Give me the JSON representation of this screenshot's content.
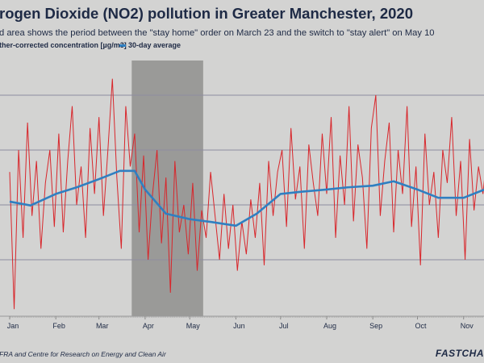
{
  "header": {
    "title": "rogen Dioxide (NO2) pollution in Greater Manchester, 2020",
    "subtitle": "d area shows the period between the \"stay home\" order on March 23 and the switch to \"stay alert\" on May 10",
    "legend": [
      {
        "label": "ther-corrected concentration [µg/m3]",
        "color": "#d8262b"
      },
      {
        "label": "30-day average",
        "color": "#2f7fc1"
      }
    ]
  },
  "footer": {
    "source": "FRA and Centre for Research on Energy and Clean Air",
    "brand": "FASTCHA"
  },
  "chart_data": {
    "type": "line",
    "xlabel": "",
    "ylabel": "",
    "x_tick_labels": [
      "Jan",
      "Feb",
      "Mar",
      "Apr",
      "May",
      "Jun",
      "Jul",
      "Aug",
      "Sep",
      "Oct",
      "Nov"
    ],
    "xlim": [
      "2020-01-01",
      "2020-11-21"
    ],
    "ylim": [
      0,
      45
    ],
    "grid": "horizontal",
    "gridlines": [
      10,
      20,
      30,
      40
    ],
    "shaded_period": {
      "start": "2020-03-23",
      "end": "2020-05-10",
      "color": "#9a9a98"
    },
    "series": [
      {
        "name": "ther-corrected concentration [µg/m3]",
        "color": "#d8262b",
        "start": "2020-01-01",
        "step_days": 3,
        "values": [
          26,
          1,
          30,
          14,
          35,
          18,
          28,
          12,
          24,
          30,
          16,
          33,
          15,
          28,
          38,
          20,
          27,
          14,
          34,
          22,
          36,
          18,
          30,
          43,
          25,
          12,
          38,
          27,
          33,
          15,
          29,
          10,
          22,
          30,
          13,
          25,
          4,
          28,
          15,
          20,
          11,
          24,
          8,
          19,
          14,
          26,
          18,
          10,
          22,
          12,
          20,
          8,
          17,
          11,
          21,
          14,
          24,
          9,
          28,
          18,
          26,
          30,
          16,
          34,
          21,
          27,
          12,
          31,
          24,
          18,
          33,
          22,
          36,
          14,
          29,
          20,
          38,
          17,
          31,
          25,
          12,
          34,
          40,
          18,
          28,
          35,
          15,
          30,
          22,
          38,
          16,
          27,
          9,
          33,
          20,
          26,
          14,
          30,
          24,
          36,
          18,
          28,
          10,
          32,
          19,
          27,
          22,
          30
        ]
      },
      {
        "name": "30-day average",
        "color": "#2f7fc1",
        "x": [
          "2020-01-01",
          "2020-01-15",
          "2020-02-01",
          "2020-02-15",
          "2020-03-01",
          "2020-03-15",
          "2020-03-25",
          "2020-04-01",
          "2020-04-15",
          "2020-05-01",
          "2020-05-15",
          "2020-06-01",
          "2020-06-15",
          "2020-07-01",
          "2020-07-15",
          "2020-08-01",
          "2020-08-15",
          "2020-09-01",
          "2020-09-15",
          "2020-10-01",
          "2020-10-15",
          "2020-11-01",
          "2020-11-15"
        ],
        "values": [
          20.6,
          19.9,
          22,
          23.2,
          24.7,
          26.2,
          26.2,
          22.8,
          18.4,
          17.4,
          16.9,
          16.2,
          18.4,
          22,
          22.4,
          22.8,
          23.2,
          23.5,
          24.3,
          22.8,
          21.3,
          21.3,
          22.8
        ]
      }
    ]
  }
}
